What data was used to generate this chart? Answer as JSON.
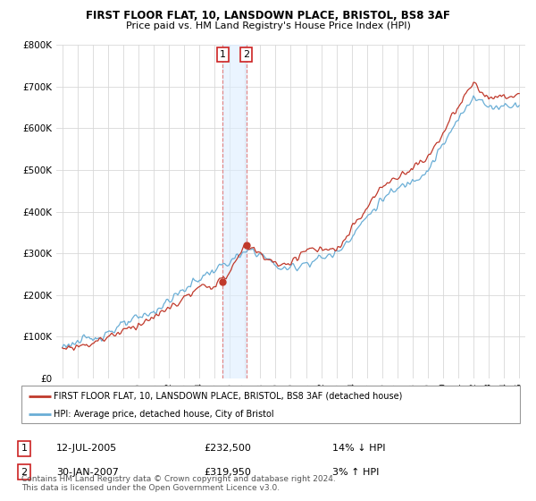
{
  "title": "FIRST FLOOR FLAT, 10, LANSDOWN PLACE, BRISTOL, BS8 3AF",
  "subtitle": "Price paid vs. HM Land Registry's House Price Index (HPI)",
  "legend_label_red": "FIRST FLOOR FLAT, 10, LANSDOWN PLACE, BRISTOL, BS8 3AF (detached house)",
  "legend_label_blue": "HPI: Average price, detached house, City of Bristol",
  "purchase1_date": "12-JUL-2005",
  "purchase1_price": "£232,500",
  "purchase1_hpi": "14% ↓ HPI",
  "purchase2_date": "30-JAN-2007",
  "purchase2_price": "£319,950",
  "purchase2_hpi": "3% ↑ HPI",
  "footnote": "Contains HM Land Registry data © Crown copyright and database right 2024.\nThis data is licensed under the Open Government Licence v3.0.",
  "ylim": [
    0,
    800000
  ],
  "yticks": [
    0,
    100000,
    200000,
    300000,
    400000,
    500000,
    600000,
    700000,
    800000
  ],
  "ytick_labels": [
    "£0",
    "£100K",
    "£200K",
    "£300K",
    "£400K",
    "£500K",
    "£600K",
    "£700K",
    "£800K"
  ],
  "purchase1_year": 2005.53,
  "purchase1_value": 232500,
  "purchase2_year": 2007.08,
  "purchase2_value": 319950,
  "color_red": "#c0392b",
  "color_blue": "#6aaed6",
  "color_vline_red": "#e08080",
  "color_vline_blue": "#a8c8e8",
  "color_fill": "#ddeeff",
  "background_color": "#ffffff",
  "grid_color": "#d8d8d8"
}
